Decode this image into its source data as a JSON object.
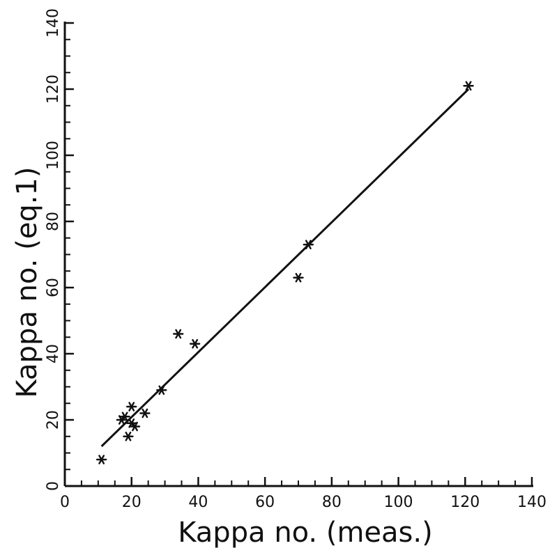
{
  "chart_data": {
    "type": "scatter",
    "xlabel": "Kappa no. (meas.)",
    "ylabel": "Kappa no. (eq.1)",
    "xlim": [
      0,
      140
    ],
    "ylim": [
      0,
      140
    ],
    "x_ticks": [
      0,
      20,
      40,
      60,
      80,
      100,
      120,
      140
    ],
    "y_ticks": [
      0,
      20,
      40,
      60,
      80,
      100,
      120,
      140
    ],
    "x_tick_labels": [
      "0",
      "20",
      "40",
      "60",
      "80",
      "100",
      "120",
      "140"
    ],
    "y_tick_labels": [
      "0",
      "20",
      "40",
      "60",
      "80",
      "100",
      "120",
      "140"
    ],
    "grid": false,
    "marker": "asterisk",
    "series": [
      {
        "points": [
          {
            "x": 11,
            "y": 8
          },
          {
            "x": 17,
            "y": 20
          },
          {
            "x": 18,
            "y": 21
          },
          {
            "x": 19,
            "y": 15
          },
          {
            "x": 20,
            "y": 19
          },
          {
            "x": 20,
            "y": 24
          },
          {
            "x": 21,
            "y": 18
          },
          {
            "x": 24,
            "y": 22
          },
          {
            "x": 29,
            "y": 29
          },
          {
            "x": 34,
            "y": 46
          },
          {
            "x": 39,
            "y": 43
          },
          {
            "x": 70,
            "y": 63
          },
          {
            "x": 73,
            "y": 73
          },
          {
            "x": 121,
            "y": 121
          }
        ]
      }
    ],
    "fit_line": {
      "x": [
        11,
        121
      ],
      "y": [
        12,
        120
      ]
    }
  }
}
